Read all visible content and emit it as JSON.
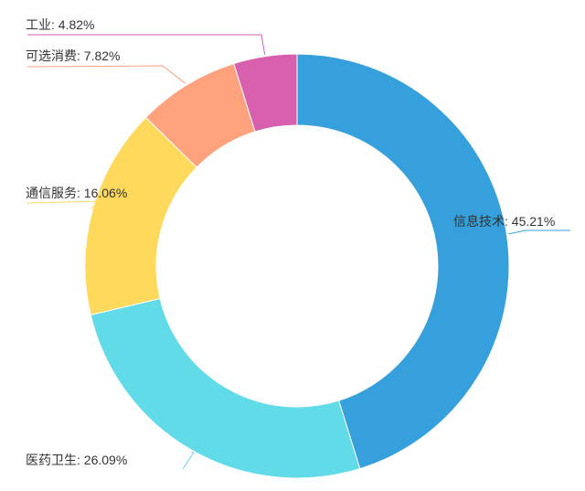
{
  "chart_data": {
    "type": "pie",
    "variant": "donut",
    "title": "",
    "categories": [
      "信息技术",
      "医药卫生",
      "通信服务",
      "可选消费",
      "工业"
    ],
    "values": [
      45.21,
      26.09,
      16.06,
      7.82,
      4.82
    ],
    "unit": "%",
    "labels": [
      "信息技术: 45.21%",
      "医药卫生: 26.09%",
      "通信服务: 16.06%",
      "可选消费: 7.82%",
      "工业: 4.82%"
    ],
    "colors": [
      "#35a0dc",
      "#62dbe8",
      "#fed95b",
      "#fea27e",
      "#d75fae"
    ],
    "start_angle_deg": 0,
    "direction": "clockwise",
    "label_placement": "outside-with-leader-lines",
    "legend": "none",
    "grid": false
  }
}
